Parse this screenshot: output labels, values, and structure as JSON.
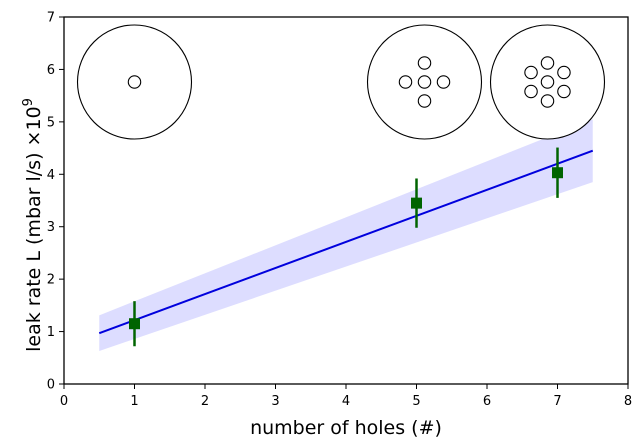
{
  "chart_data": {
    "type": "scatter",
    "xlabel": "number of holes (#)",
    "ylabel": "leak rate L (mbar l/s) ×10",
    "ylabel_exponent": "9",
    "xlim": [
      0,
      8
    ],
    "ylim": [
      0,
      7
    ],
    "x_ticks": [
      "0",
      "1",
      "2",
      "3",
      "4",
      "5",
      "6",
      "7",
      "8"
    ],
    "y_ticks": [
      "0",
      "1",
      "2",
      "3",
      "4",
      "5",
      "6",
      "7"
    ],
    "grid": false,
    "series": [
      {
        "kind": "points-with-error",
        "color": "#006400",
        "x": [
          1,
          5,
          7
        ],
        "y": [
          1.15,
          3.45,
          4.03
        ],
        "yerr": [
          0.43,
          0.47,
          0.48
        ]
      },
      {
        "kind": "fit-line",
        "color": "#0000dd",
        "x": [
          0.5,
          7.5
        ],
        "y": [
          0.97,
          4.45
        ]
      },
      {
        "kind": "confidence-band",
        "color": "#b4b4ff",
        "x": [
          0.5,
          7.5
        ],
        "y_lower": [
          0.63,
          3.85
        ],
        "y_upper": [
          1.31,
          5.05
        ]
      }
    ],
    "hole_pattern_sketches": [
      {
        "holes": 1,
        "x": 1
      },
      {
        "holes": 5,
        "x": 5
      },
      {
        "holes": 7,
        "x": 7
      }
    ]
  }
}
